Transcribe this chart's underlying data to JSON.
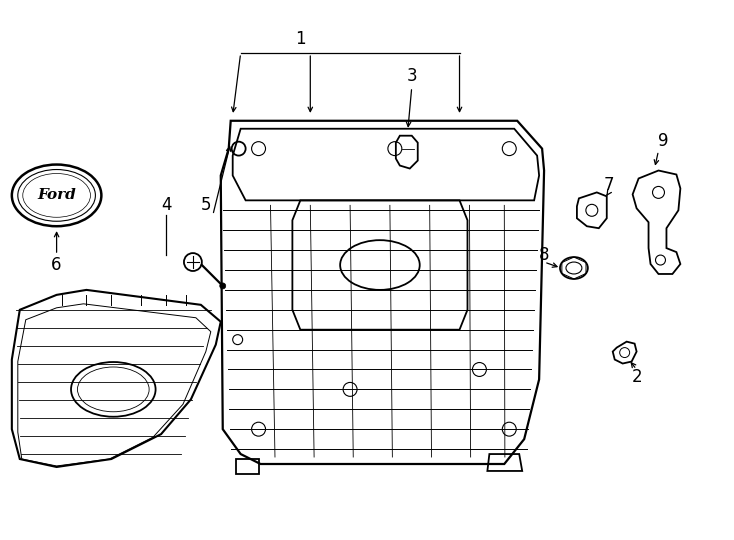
{
  "bg": "#ffffff",
  "lc": "#000000",
  "fig_w": 7.34,
  "fig_h": 5.4,
  "dpi": 100,
  "fs_label": 12
}
